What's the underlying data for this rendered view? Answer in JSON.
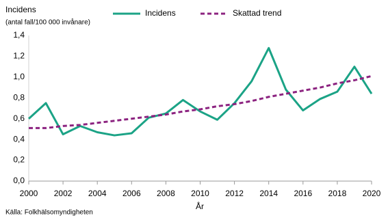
{
  "chart_data": {
    "type": "line",
    "title": "Incidens",
    "subtitle": "(antal fall/100 000 invånare)",
    "x_label": "År",
    "source": "Källa: Folkhälsomyndigheten",
    "x": [
      2000,
      2001,
      2002,
      2003,
      2004,
      2005,
      2006,
      2007,
      2008,
      2009,
      2010,
      2011,
      2012,
      2013,
      2014,
      2015,
      2016,
      2017,
      2018,
      2019,
      2020
    ],
    "series": [
      {
        "name": "Incidens",
        "color": "#1ba386",
        "dash": "solid",
        "values": [
          0.6,
          0.75,
          0.45,
          0.53,
          0.47,
          0.44,
          0.46,
          0.61,
          0.65,
          0.78,
          0.67,
          0.59,
          0.75,
          0.96,
          1.28,
          0.88,
          0.68,
          0.79,
          0.86,
          1.1,
          0.84
        ]
      },
      {
        "name": "Skattad trend",
        "color": "#8c2380",
        "dash": "dashed",
        "values": [
          0.51,
          0.51,
          0.53,
          0.54,
          0.56,
          0.58,
          0.6,
          0.62,
          0.64,
          0.67,
          0.69,
          0.72,
          0.74,
          0.77,
          0.81,
          0.84,
          0.87,
          0.9,
          0.94,
          0.97,
          1.01
        ]
      }
    ],
    "xlim": [
      2000,
      2020
    ],
    "xticks": [
      2000,
      2002,
      2004,
      2006,
      2008,
      2010,
      2012,
      2014,
      2016,
      2018,
      2020
    ],
    "ylim": [
      0,
      1.4
    ],
    "yticks": [
      {
        "value": 0,
        "label": "0,0"
      },
      {
        "value": 0.2,
        "label": "0,2"
      },
      {
        "value": 0.4,
        "label": "0,4"
      },
      {
        "value": 0.6,
        "label": "0,6"
      },
      {
        "value": 0.8,
        "label": "0,8"
      },
      {
        "value": 1.0,
        "label": "1,0"
      },
      {
        "value": 1.2,
        "label": "1,2"
      },
      {
        "value": 1.4,
        "label": "1,4"
      }
    ],
    "grid": false,
    "legend_position": "top"
  }
}
